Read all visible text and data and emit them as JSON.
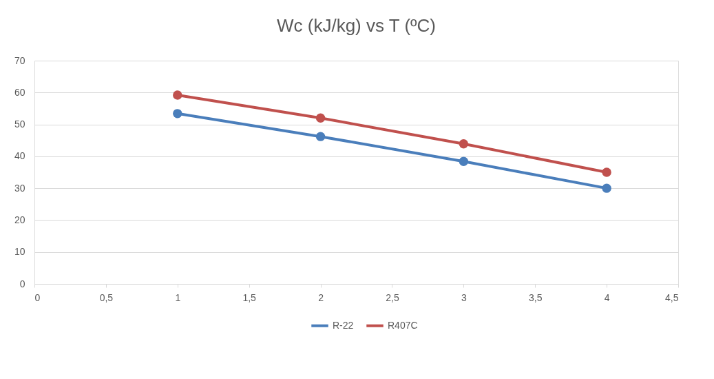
{
  "chart_data": {
    "type": "line",
    "title": "Wc (kJ/kg) vs T (ºC)",
    "x": [
      1,
      2,
      3,
      4
    ],
    "series": [
      {
        "name": "R-22",
        "color": "#4a7ebb",
        "values": [
          53.4,
          46.2,
          38.4,
          30.0
        ]
      },
      {
        "name": "R407C",
        "color": "#c0504d",
        "values": [
          59.2,
          52.0,
          43.9,
          35.0
        ]
      }
    ],
    "xlim": [
      0,
      4.5
    ],
    "xticks": [
      0,
      {
        "value": 0.5,
        "label": "0,5"
      },
      1,
      {
        "value": 1.5,
        "label": "1,5"
      },
      2,
      {
        "value": 2.5,
        "label": "2,5"
      },
      3,
      {
        "value": 3.5,
        "label": "3,5"
      },
      4,
      {
        "value": 4.5,
        "label": "4,5"
      }
    ],
    "ylim": [
      0,
      70
    ],
    "yticks": [
      0,
      10,
      20,
      30,
      40,
      50,
      60,
      70
    ],
    "grid": "y",
    "legend": "bottom",
    "marker": "circle",
    "line_style": "solid"
  }
}
